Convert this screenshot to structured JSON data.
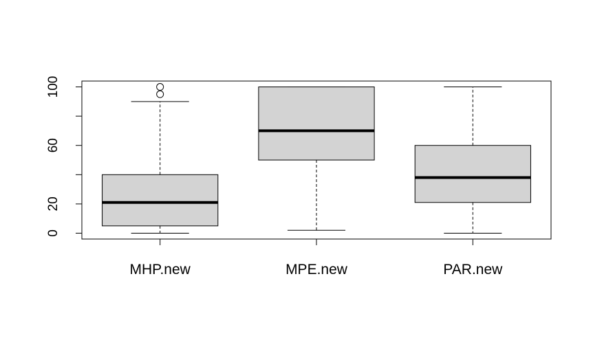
{
  "chart_data": {
    "type": "boxplot",
    "title": "",
    "xlabel": "",
    "ylabel": "",
    "ylim": [
      -4,
      104
    ],
    "y_ticks": [
      0,
      20,
      40,
      60,
      80,
      100
    ],
    "y_tick_labels": [
      {
        "value": 0,
        "label": "0"
      },
      {
        "value": 20,
        "label": "20"
      },
      {
        "value": 60,
        "label": "60"
      },
      {
        "value": 100,
        "label": "100"
      }
    ],
    "grid": false,
    "box_fill": "#d3d3d3",
    "categories": [
      "MHP.new",
      "MPE.new",
      "PAR.new"
    ],
    "boxes": [
      {
        "name": "MHP.new",
        "whisker_low": 0,
        "q1": 5,
        "median": 21,
        "q3": 40,
        "whisker_high": 90,
        "outliers": [
          95,
          100
        ]
      },
      {
        "name": "MPE.new",
        "whisker_low": 2,
        "q1": 50,
        "median": 70,
        "q3": 100,
        "whisker_high": 100,
        "outliers": []
      },
      {
        "name": "PAR.new",
        "whisker_low": 0,
        "q1": 21,
        "median": 38,
        "q3": 60,
        "whisker_high": 100,
        "outliers": []
      }
    ]
  }
}
